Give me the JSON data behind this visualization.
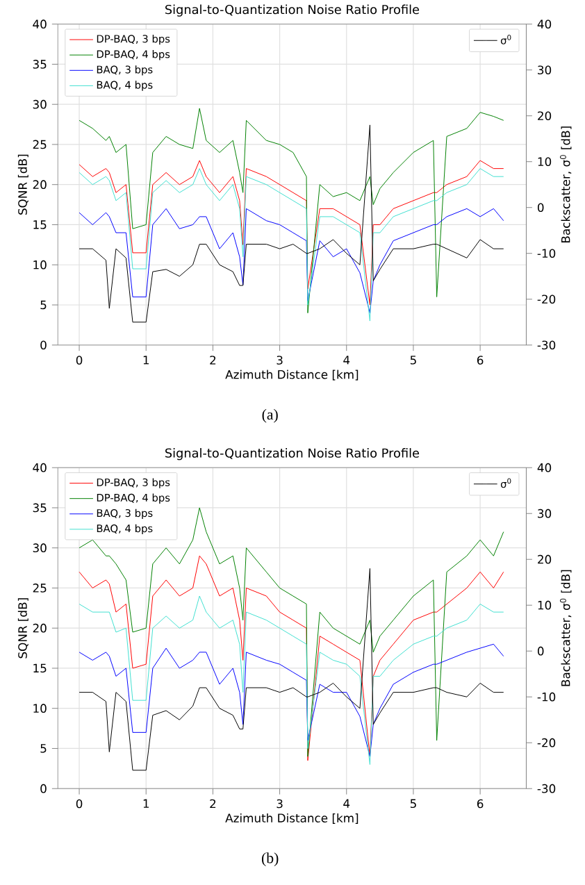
{
  "chart_data": [
    {
      "type": "line",
      "title": "Signal-to-Quantization Noise Ratio Profile",
      "xlabel": "Azimuth Distance [km]",
      "ylabel": "SQNR [dB]",
      "y2label": "Backscatter, σ$^{0}$ [dB]",
      "annotations": [
        "(a)"
      ],
      "x": [
        0,
        0.2,
        0.4,
        0.45,
        0.55,
        0.7,
        0.8,
        1.0,
        1.1,
        1.3,
        1.5,
        1.7,
        1.8,
        1.9,
        2.1,
        2.3,
        2.4,
        2.45,
        2.5,
        2.8,
        3.0,
        3.2,
        3.4,
        3.42,
        3.6,
        3.8,
        4.0,
        4.2,
        4.35,
        4.4,
        4.5,
        4.7,
        5.0,
        5.3,
        5.35,
        5.5,
        5.8,
        6.0,
        6.2,
        6.35
      ],
      "xlim": [
        -0.32,
        6.69
      ],
      "ylim": [
        0,
        40
      ],
      "y2lim": [
        -30,
        40
      ],
      "xticks": [
        0,
        1,
        2,
        3,
        4,
        5,
        6
      ],
      "yticks": [
        0,
        5,
        10,
        15,
        20,
        25,
        30,
        35,
        40
      ],
      "y2ticks": [
        -30,
        -20,
        -10,
        0,
        10,
        20,
        30,
        40
      ],
      "grid": true,
      "legend": "top left",
      "series": [
        {
          "name": "DP-BAQ, 3 bps",
          "color": "#ff0000",
          "values": [
            22.5,
            21,
            22,
            21.5,
            19,
            20,
            11.5,
            11.5,
            20,
            21.5,
            20,
            21,
            23,
            21,
            19,
            21,
            18,
            12.5,
            22,
            21,
            20,
            19,
            18,
            7,
            17,
            17,
            16,
            15,
            5,
            15,
            15,
            17,
            18,
            19,
            19,
            20,
            21,
            23,
            22,
            22
          ]
        },
        {
          "name": "DP-BAQ, 4 bps",
          "color": "#008000",
          "values": [
            28,
            27,
            25.5,
            26,
            24,
            25,
            14.5,
            15,
            24,
            26,
            25,
            24.5,
            29.5,
            25.5,
            24,
            25.5,
            21.5,
            19,
            28,
            25.5,
            25,
            24,
            21,
            4,
            20,
            18.5,
            19,
            18,
            21,
            17.5,
            19.5,
            21.5,
            24,
            25.5,
            6,
            26,
            27,
            29,
            28.5,
            28
          ]
        },
        {
          "name": "BAQ, 3 bps",
          "color": "#0000ff",
          "values": [
            16.5,
            15,
            16.5,
            16,
            14,
            14,
            6,
            6,
            15,
            17,
            14.5,
            15,
            16,
            16,
            12,
            14,
            11,
            7.5,
            17,
            15.5,
            15,
            14,
            13,
            5.5,
            13,
            11,
            12,
            9,
            4,
            8,
            10,
            13,
            14,
            15,
            15,
            16,
            17,
            16,
            17,
            15.5
          ]
        },
        {
          "name": "BAQ, 4 bps",
          "color": "#40e0d0",
          "values": [
            21.5,
            20,
            21,
            20.5,
            18,
            19,
            9.5,
            9.5,
            19,
            20.5,
            19,
            20,
            22,
            20,
            18,
            20,
            17,
            11,
            21,
            20,
            19,
            18,
            17,
            5,
            16,
            16,
            15,
            14,
            3,
            14,
            14,
            16,
            17,
            18,
            18,
            19,
            20,
            22,
            21,
            21
          ]
        },
        {
          "name": "σ$^{0}$",
          "color": "#000000",
          "axis": "y2",
          "values": [
            -9,
            -9,
            -11.5,
            -22,
            -9,
            -11,
            -25,
            -25,
            -14,
            -13.5,
            -15,
            -12.5,
            -8,
            -8,
            -12.5,
            -14,
            -17,
            -17,
            -8,
            -8,
            -9,
            -8,
            -10,
            -10,
            -9,
            -7,
            -10,
            -12.5,
            18,
            -16,
            -13.5,
            -9,
            -9,
            -8,
            -8,
            -9,
            -11,
            -7,
            -9,
            -9
          ]
        }
      ]
    },
    {
      "type": "line",
      "title": "Signal-to-Quantization Noise Ratio Profile",
      "xlabel": "Azimuth Distance [km]",
      "ylabel": "SQNR [dB]",
      "y2label": "Backscatter, σ$^{0}$ [dB]",
      "annotations": [
        "(b)"
      ],
      "x": [
        0,
        0.2,
        0.4,
        0.45,
        0.55,
        0.7,
        0.8,
        1.0,
        1.1,
        1.3,
        1.5,
        1.7,
        1.8,
        1.9,
        2.1,
        2.3,
        2.4,
        2.45,
        2.5,
        2.8,
        3.0,
        3.2,
        3.4,
        3.42,
        3.6,
        3.8,
        4.0,
        4.2,
        4.35,
        4.4,
        4.5,
        4.7,
        5.0,
        5.3,
        5.35,
        5.5,
        5.8,
        6.0,
        6.2,
        6.35
      ],
      "xlim": [
        -0.32,
        6.69
      ],
      "ylim": [
        0,
        40
      ],
      "y2lim": [
        -30,
        40
      ],
      "xticks": [
        0,
        1,
        2,
        3,
        4,
        5,
        6
      ],
      "yticks": [
        0,
        5,
        10,
        15,
        20,
        25,
        30,
        35,
        40
      ],
      "y2ticks": [
        -30,
        -20,
        -10,
        0,
        10,
        20,
        30,
        40
      ],
      "grid": true,
      "legend": "top left",
      "series": [
        {
          "name": "DP-BAQ, 3 bps",
          "color": "#ff0000",
          "values": [
            27,
            25,
            26,
            25.5,
            22,
            23,
            15,
            15.5,
            24,
            26,
            24,
            25,
            29,
            28,
            24,
            25,
            21,
            16,
            25,
            24,
            22,
            21,
            20,
            3.5,
            19,
            18,
            17,
            16,
            4,
            14,
            16,
            18,
            21,
            22,
            22,
            23,
            25,
            27,
            25,
            27
          ]
        },
        {
          "name": "DP-BAQ, 4 bps",
          "color": "#008000",
          "values": [
            30,
            31,
            29,
            29,
            28,
            26,
            19.5,
            20,
            28,
            30,
            28,
            31,
            35,
            32,
            28,
            29,
            25,
            21,
            30,
            27,
            25,
            24,
            23,
            4,
            22,
            20,
            19,
            18,
            21,
            17,
            19,
            21,
            24,
            26,
            6,
            27,
            29,
            31,
            29,
            32
          ]
        },
        {
          "name": "BAQ, 3 bps",
          "color": "#0000ff",
          "values": [
            17,
            16,
            17,
            16.5,
            14,
            15,
            7,
            7,
            15,
            17.5,
            15,
            16,
            17,
            17,
            13,
            15,
            12,
            8,
            17,
            16,
            15.5,
            14.5,
            13.5,
            6,
            13,
            12,
            12,
            9,
            4,
            8,
            10,
            13,
            14.5,
            15.5,
            15.5,
            16,
            17,
            17.5,
            18,
            16.5
          ]
        },
        {
          "name": "BAQ, 4 bps",
          "color": "#40e0d0",
          "values": [
            23,
            22,
            22,
            22,
            19.5,
            20,
            11,
            11,
            20,
            21.5,
            20,
            21,
            24,
            22,
            20,
            21,
            18,
            12,
            22,
            21,
            20,
            19,
            18,
            5,
            17,
            16,
            15.5,
            14,
            3,
            14,
            14,
            16,
            18,
            19,
            19,
            20,
            21,
            23,
            22,
            22
          ]
        },
        {
          "name": "σ$^{0}$",
          "color": "#000000",
          "axis": "y2",
          "values": [
            -9,
            -9,
            -11,
            -22,
            -9,
            -11,
            -26,
            -26,
            -14,
            -13,
            -15,
            -12,
            -8,
            -8,
            -12.5,
            -14,
            -17,
            -17,
            -8,
            -8,
            -9,
            -8,
            -10,
            -10,
            -9,
            -7,
            -10,
            -12.5,
            18,
            -16,
            -13.5,
            -9,
            -9,
            -8,
            -8,
            -9,
            -10,
            -7,
            -9,
            -9
          ]
        }
      ]
    }
  ]
}
